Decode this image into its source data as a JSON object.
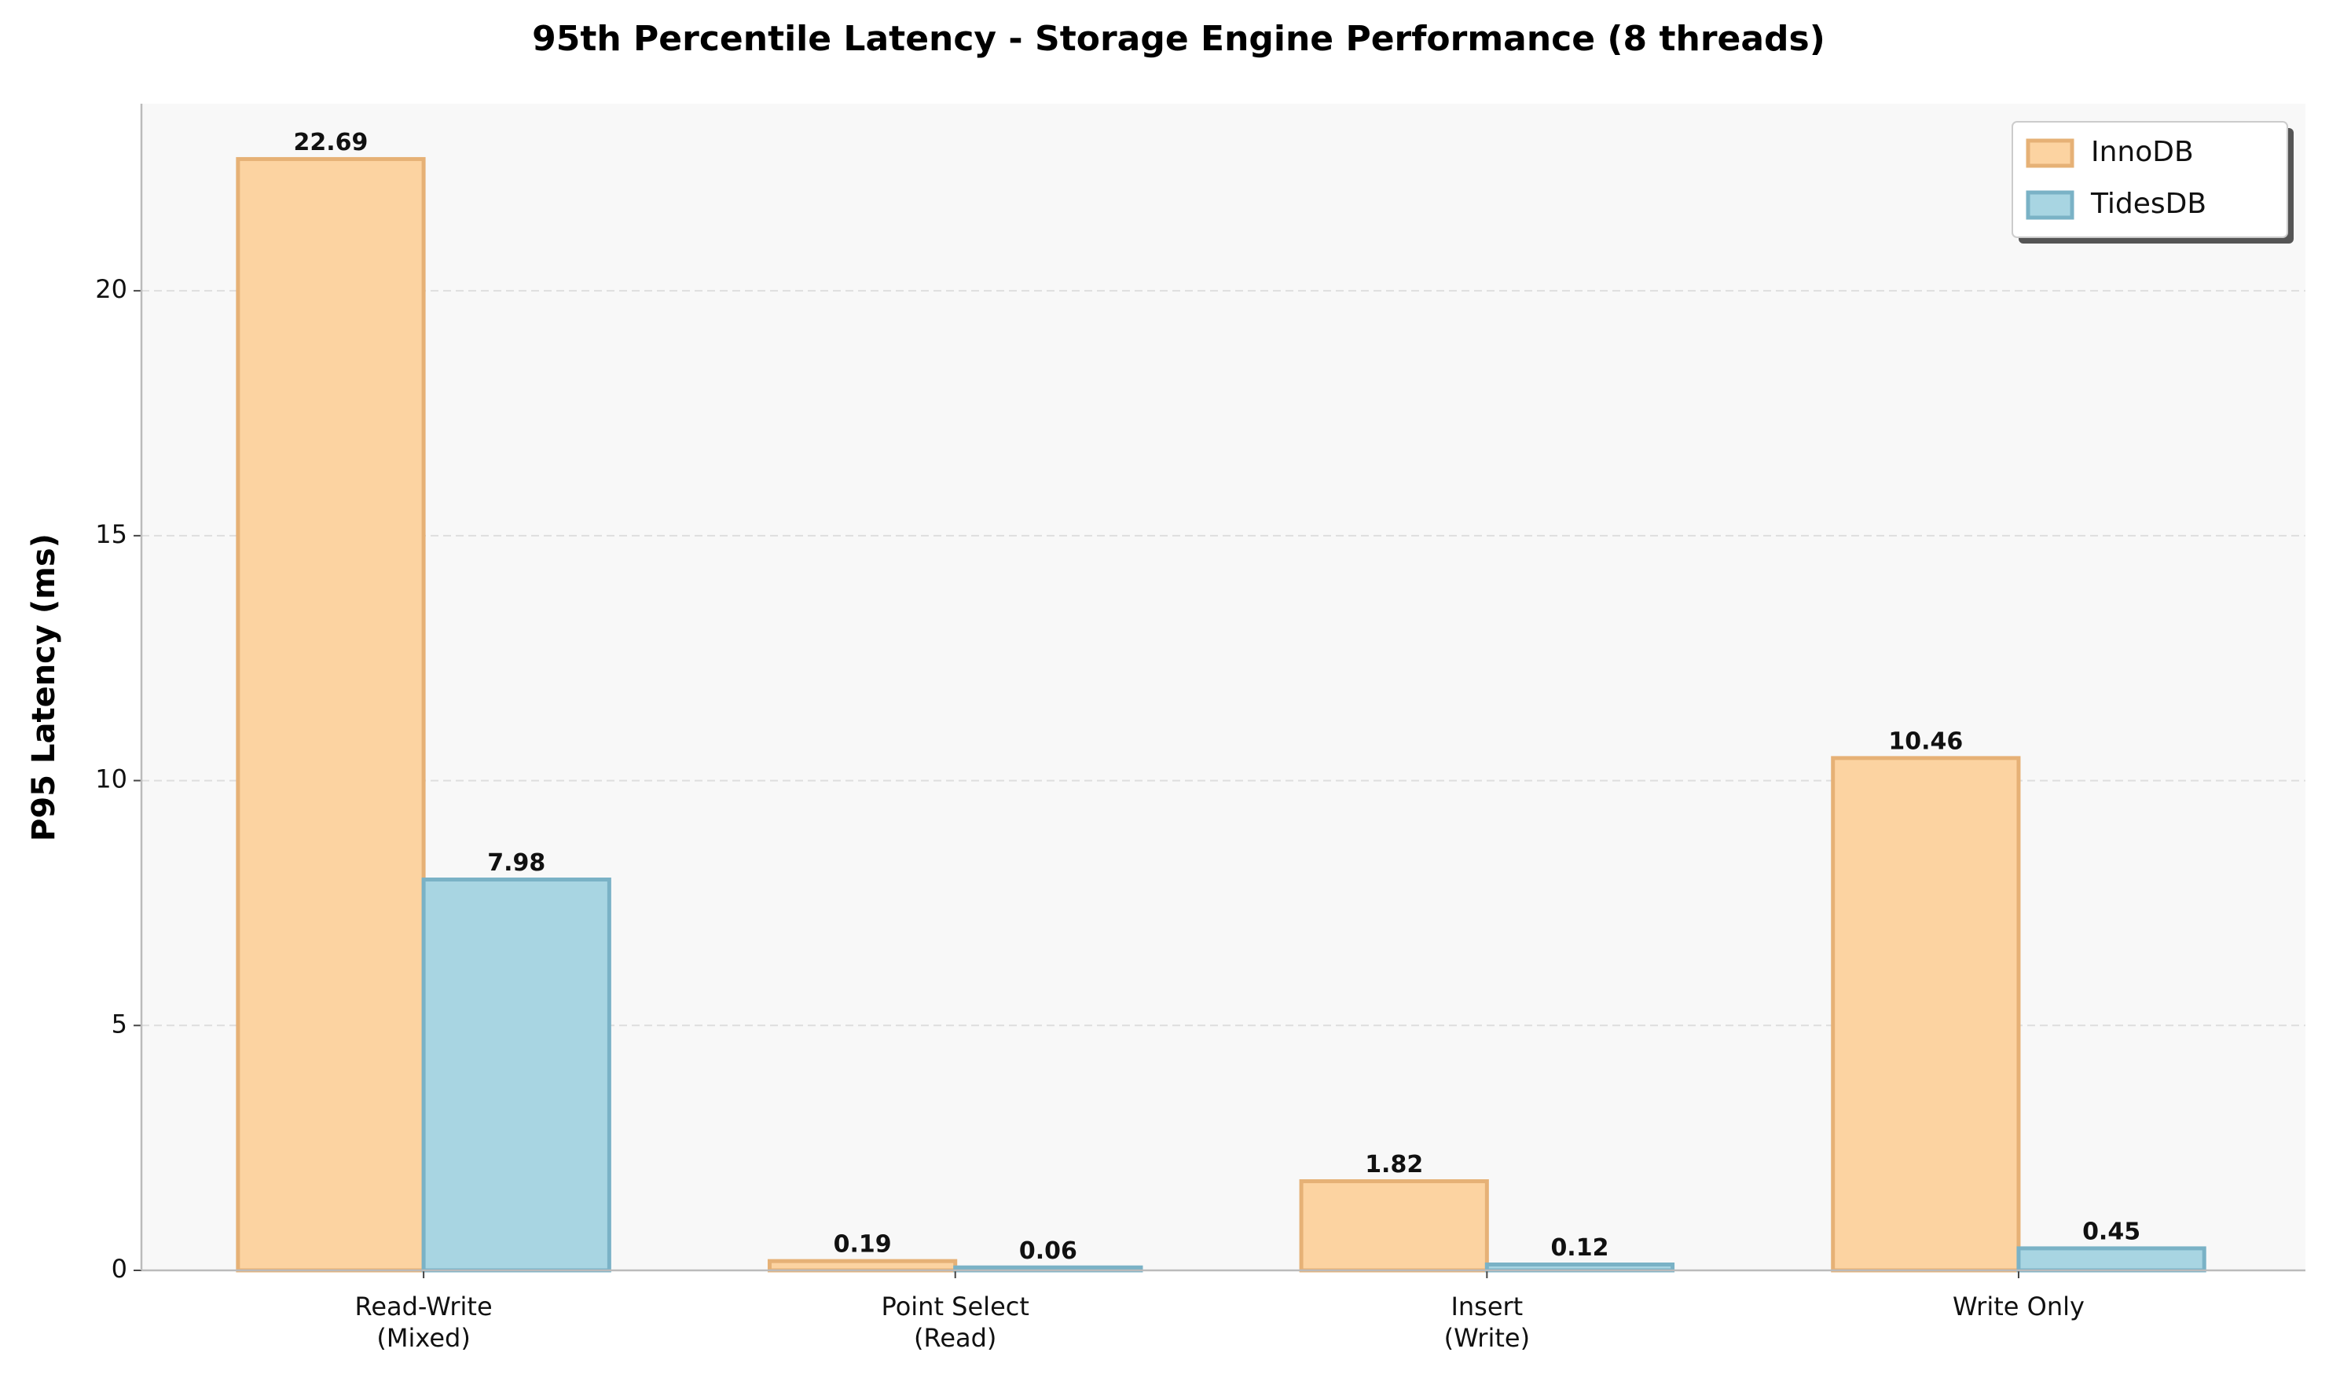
{
  "chart_data": {
    "type": "bar",
    "title": "95th Percentile Latency - Storage Engine Performance (8 threads)",
    "y_label": "P95 Latency (ms)",
    "categories": [
      "Read-Write\n(Mixed)",
      "Point Select\n(Read)",
      "Insert\n(Write)",
      "Write Only"
    ],
    "series": [
      {
        "name": "InnoDB",
        "color": "#fcd3a1",
        "edge_color": "#e6b176",
        "values": [
          22.69,
          0.19,
          1.82,
          10.46
        ]
      },
      {
        "name": "TidesDB",
        "color": "#a8d5e2",
        "edge_color": "#7ab2c6",
        "values": [
          7.98,
          0.06,
          0.12,
          0.45
        ]
      }
    ],
    "ylim": [
      0,
      23.82
    ],
    "yticks": [
      0,
      5,
      10,
      15,
      20
    ],
    "grid": true,
    "legend": "upper right"
  }
}
